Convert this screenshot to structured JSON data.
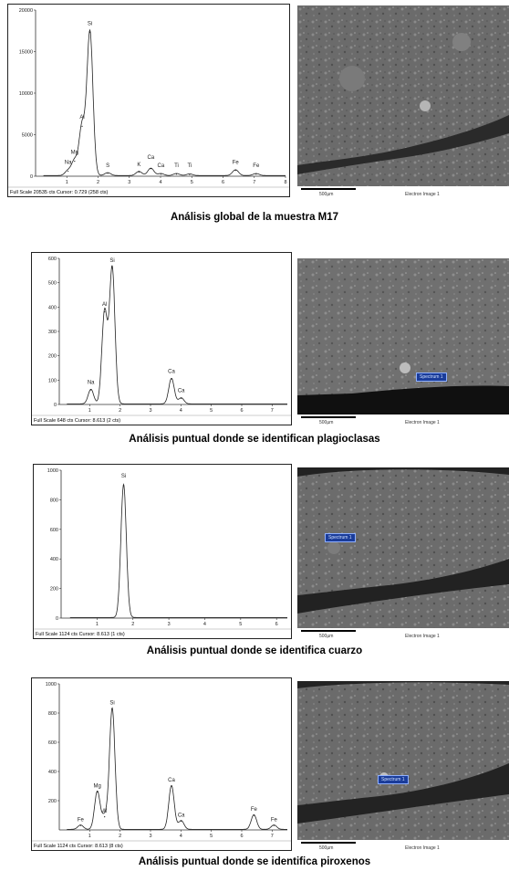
{
  "panels": [
    {
      "caption": "Análisis global de la muestra M17",
      "footer": "Full Scale 20535 cts Cursor: 0.729  (258 cts)",
      "y_max": 20000,
      "y_ticks": [
        "20000",
        "15000",
        "10000",
        "5000",
        "0"
      ],
      "x_ticks": [
        "1",
        "2",
        "3",
        "4",
        "5",
        "6",
        "7",
        "8"
      ],
      "peaks": [
        {
          "label": "Na",
          "x": 1.04,
          "y": 600
        },
        {
          "label": "Mg",
          "x": 1.25,
          "y": 1800
        },
        {
          "label": "Al",
          "x": 1.49,
          "y": 6000
        },
        {
          "label": "Si",
          "x": 1.74,
          "y": 17300
        },
        {
          "label": "S",
          "x": 2.31,
          "y": 350
        },
        {
          "label": "K",
          "x": 3.31,
          "y": 500
        },
        {
          "label": "Ca",
          "x": 3.69,
          "y": 900
        },
        {
          "label": "Ca",
          "x": 4.01,
          "y": 250
        },
        {
          "label": "Ti",
          "x": 4.51,
          "y": 250
        },
        {
          "label": "Ti",
          "x": 4.93,
          "y": 200
        },
        {
          "label": "Fe",
          "x": 6.4,
          "y": 700
        },
        {
          "label": "Fe",
          "x": 7.06,
          "y": 250
        }
      ],
      "peak_labels": [
        {
          "label": "Na",
          "x": 1.04,
          "y": 1500
        },
        {
          "label": "Mg",
          "x": 1.25,
          "y": 2700
        },
        {
          "label": "Al",
          "x": 1.49,
          "y": 6900
        },
        {
          "label": "Si",
          "x": 1.74,
          "y": 18200
        },
        {
          "label": "S",
          "x": 2.31,
          "y": 1100
        },
        {
          "label": "K",
          "x": 3.31,
          "y": 1200
        },
        {
          "label": "Ca",
          "x": 3.69,
          "y": 2100
        },
        {
          "label": "Ca",
          "x": 4.01,
          "y": 1100
        },
        {
          "label": "Ti",
          "x": 4.51,
          "y": 1100
        },
        {
          "label": "Ti",
          "x": 4.93,
          "y": 1100
        },
        {
          "label": "Fe",
          "x": 6.4,
          "y": 1500
        },
        {
          "label": "Fe",
          "x": 7.06,
          "y": 1100
        }
      ],
      "sem_scale": "500µm",
      "sem_image_label": "Electron Image 1",
      "spectrum_tag": ""
    },
    {
      "caption": "Análisis puntual donde se identifican plagioclasas",
      "footer": "Full Scale 648 cts Cursor: 8.613  (2 cts)",
      "y_max": 600,
      "y_ticks": [
        "600",
        "500",
        "400",
        "300",
        "200",
        "100",
        "0"
      ],
      "x_ticks": [
        "1",
        "2",
        "3",
        "4",
        "5",
        "6",
        "7"
      ],
      "peaks": [
        {
          "label": "Na",
          "x": 1.04,
          "y": 60
        },
        {
          "label": "Al",
          "x": 1.49,
          "y": 380
        },
        {
          "label": "Si",
          "x": 1.74,
          "y": 560
        },
        {
          "label": "Ca",
          "x": 3.69,
          "y": 105
        },
        {
          "label": "Ca",
          "x": 4.01,
          "y": 25
        }
      ],
      "peak_labels": [
        {
          "label": "Na",
          "x": 1.04,
          "y": 85
        },
        {
          "label": "Al",
          "x": 1.49,
          "y": 405
        },
        {
          "label": "Si",
          "x": 1.74,
          "y": 585
        },
        {
          "label": "Ca",
          "x": 3.69,
          "y": 130
        },
        {
          "label": "Ca",
          "x": 4.01,
          "y": 50
        }
      ],
      "sem_scale": "500µm",
      "sem_image_label": "Electron Image 1",
      "spectrum_tag": "Spectrum 1"
    },
    {
      "caption": "Análisis puntual donde se identifica cuarzo",
      "footer": "Full Scale 1124 cts Cursor: 8.613  (1 cts)",
      "y_max": 1000,
      "y_ticks": [
        "1000",
        "800",
        "600",
        "400",
        "200",
        "0"
      ],
      "x_ticks": [
        "1",
        "2",
        "3",
        "4",
        "5",
        "6"
      ],
      "peaks": [
        {
          "label": "Si",
          "x": 1.74,
          "y": 900
        }
      ],
      "peak_labels": [
        {
          "label": "Si",
          "x": 1.74,
          "y": 950
        }
      ],
      "sem_scale": "500µm",
      "sem_image_label": "Electron Image 1",
      "spectrum_tag": "Spectrum 1"
    },
    {
      "caption": "Análisis puntual donde se identifica piroxenos",
      "footer": "Full Scale 1124 cts Cursor: 8.613  (8 cts)",
      "y_max": 1000,
      "y_ticks": [
        "1000",
        "800",
        "600",
        "400",
        "200"
      ],
      "x_ticks": [
        "1",
        "2",
        "3",
        "4",
        "5",
        "6",
        "7"
      ],
      "peaks": [
        {
          "label": "Fe",
          "x": 0.7,
          "y": 30
        },
        {
          "label": "Mg",
          "x": 1.25,
          "y": 260
        },
        {
          "label": "Al",
          "x": 1.49,
          "y": 90
        },
        {
          "label": "Si",
          "x": 1.74,
          "y": 830
        },
        {
          "label": "Ca",
          "x": 3.69,
          "y": 300
        },
        {
          "label": "Ca",
          "x": 4.01,
          "y": 60
        },
        {
          "label": "Fe",
          "x": 6.4,
          "y": 100
        },
        {
          "label": "Fe",
          "x": 7.06,
          "y": 30
        }
      ],
      "peak_labels": [
        {
          "label": "Fe",
          "x": 0.7,
          "y": 60
        },
        {
          "label": "Mg",
          "x": 1.25,
          "y": 290
        },
        {
          "label": "Al",
          "x": 1.49,
          "y": 120
        },
        {
          "label": "Si",
          "x": 1.74,
          "y": 860
        },
        {
          "label": "Ca",
          "x": 3.69,
          "y": 330
        },
        {
          "label": "Ca",
          "x": 4.01,
          "y": 90
        },
        {
          "label": "Fe",
          "x": 6.4,
          "y": 130
        },
        {
          "label": "Fe",
          "x": 7.06,
          "y": 60
        }
      ],
      "sem_scale": "500µm",
      "sem_image_label": "Electron Image 1",
      "spectrum_tag": "Spectrum 1"
    }
  ],
  "chart_data": [
    {
      "type": "line",
      "xlabel": "",
      "ylabel": "",
      "ylim": [
        0,
        20000
      ],
      "xlim": [
        0,
        8
      ],
      "series": [
        {
          "x": [
            1.04,
            1.25,
            1.49,
            1.74,
            2.31,
            3.31,
            3.69,
            4.01,
            4.51,
            4.93,
            6.4,
            7.06
          ],
          "values": [
            600,
            1800,
            6000,
            17300,
            350,
            500,
            900,
            250,
            250,
            200,
            700,
            250
          ]
        }
      ]
    },
    {
      "type": "line",
      "xlabel": "",
      "ylabel": "",
      "ylim": [
        0,
        600
      ],
      "xlim": [
        0,
        7.5
      ],
      "series": [
        {
          "x": [
            1.04,
            1.49,
            1.74,
            3.69,
            4.01
          ],
          "values": [
            60,
            380,
            560,
            105,
            25
          ]
        }
      ]
    },
    {
      "type": "line",
      "xlabel": "",
      "ylabel": "",
      "ylim": [
        0,
        1000
      ],
      "xlim": [
        0,
        6.3
      ],
      "series": [
        {
          "x": [
            1.74
          ],
          "values": [
            900
          ]
        }
      ]
    },
    {
      "type": "line",
      "xlabel": "",
      "ylabel": "",
      "ylim": [
        0,
        1000
      ],
      "xlim": [
        0,
        7.5
      ],
      "series": [
        {
          "x": [
            0.7,
            1.25,
            1.49,
            1.74,
            3.69,
            4.01,
            6.4,
            7.06
          ],
          "values": [
            30,
            260,
            90,
            830,
            300,
            60,
            100,
            30
          ]
        }
      ]
    }
  ]
}
